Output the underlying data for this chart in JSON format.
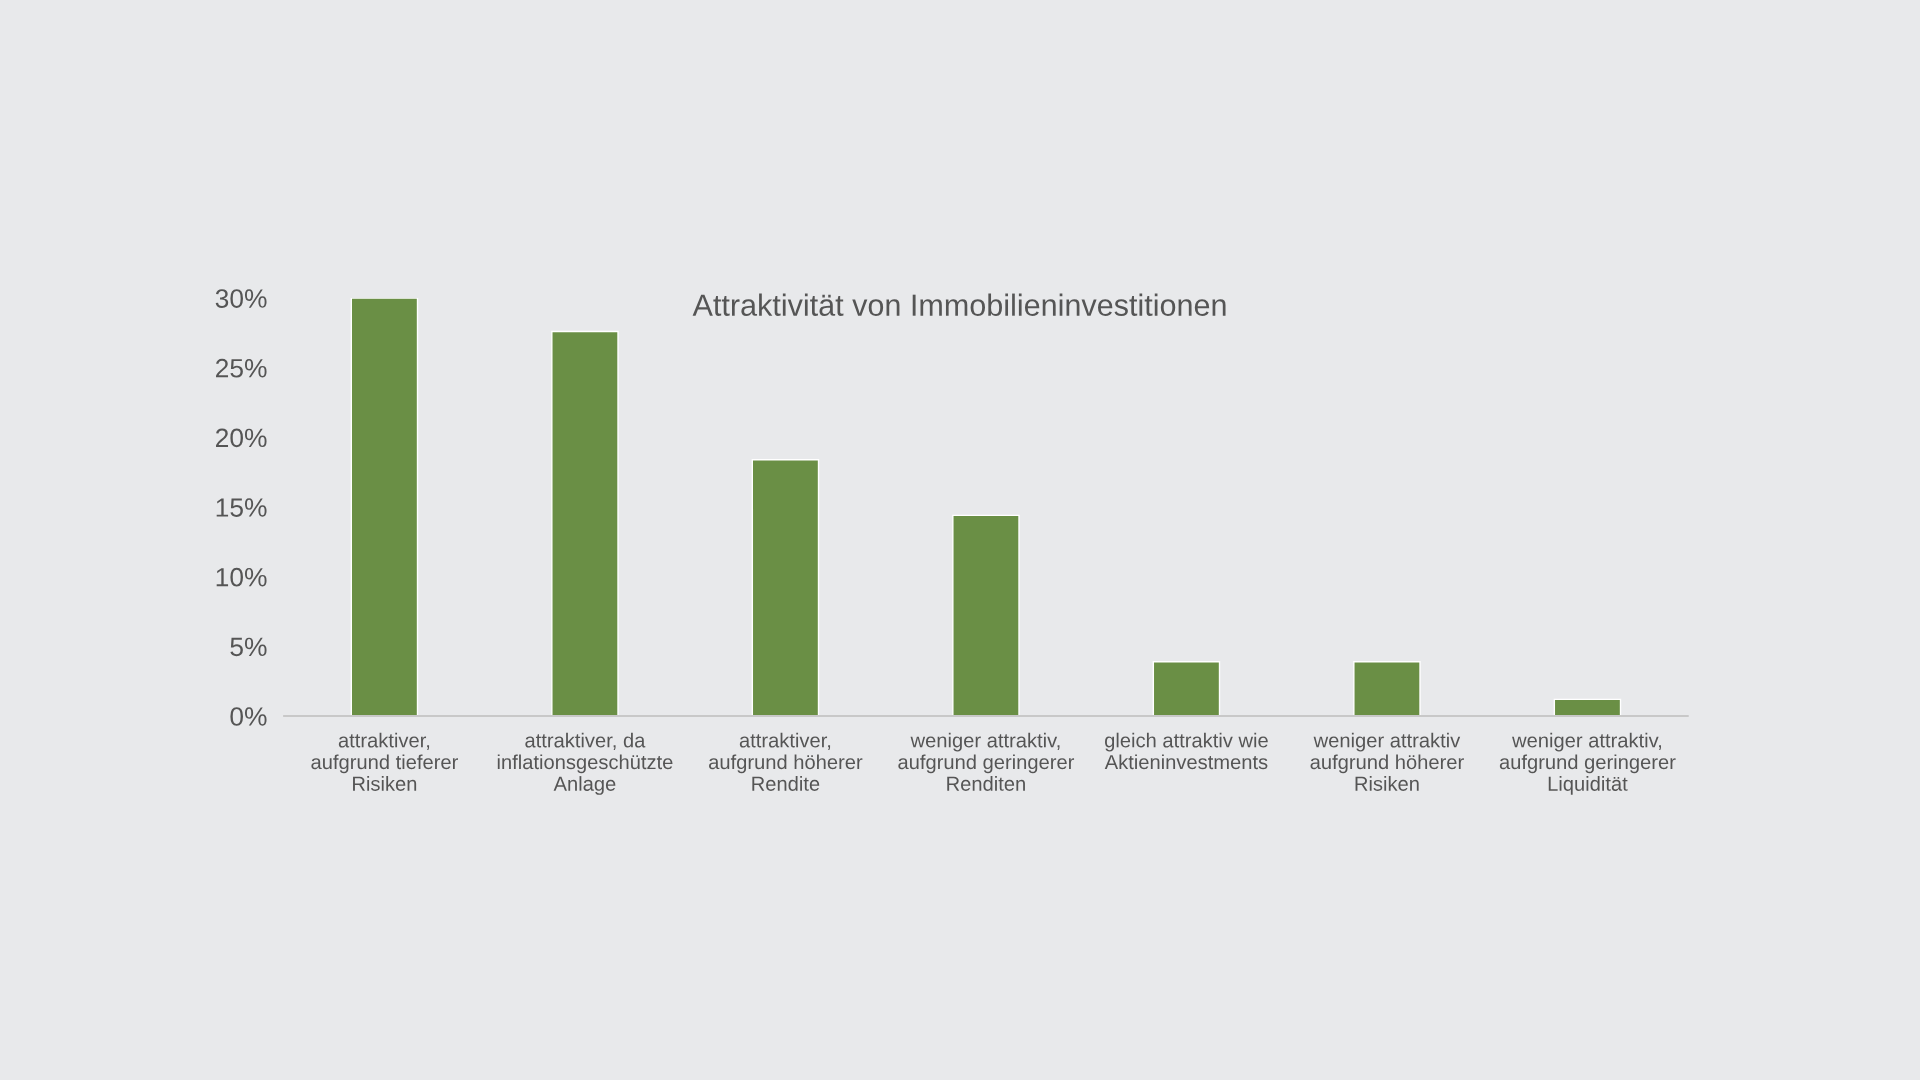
{
  "chart_data": {
    "type": "bar",
    "title": "Attraktivität von Immobilieninvestitionen",
    "categories": [
      "attraktiver,\naufgrund tieferer\nRisiken",
      "attraktiver, da\ninflationsgeschützte\nAnlage",
      "attraktiver,\naufgrund höherer\nRendite",
      "weniger attraktiv,\naufgrund geringerer\nRenditen",
      "gleich attraktiv wie\nAktieninvestments",
      "weniger attraktiv\naufgrund höherer\nRisiken",
      "weniger attraktiv,\naufgrund geringerer\nLiquidität"
    ],
    "values": [
      30,
      27.6,
      18.4,
      14.4,
      3.9,
      3.9,
      1.2
    ],
    "color": "#6a8f45",
    "ylim": [
      0,
      30
    ],
    "yticks": [
      {
        "value": 0,
        "label": "0%"
      },
      {
        "value": 5,
        "label": "5%"
      },
      {
        "value": 10,
        "label": "10%"
      },
      {
        "value": 15,
        "label": "15%"
      },
      {
        "value": 20,
        "label": "20%"
      },
      {
        "value": 25,
        "label": "25%"
      },
      {
        "value": 30,
        "label": "30%"
      }
    ],
    "grid": false,
    "legend": false
  }
}
